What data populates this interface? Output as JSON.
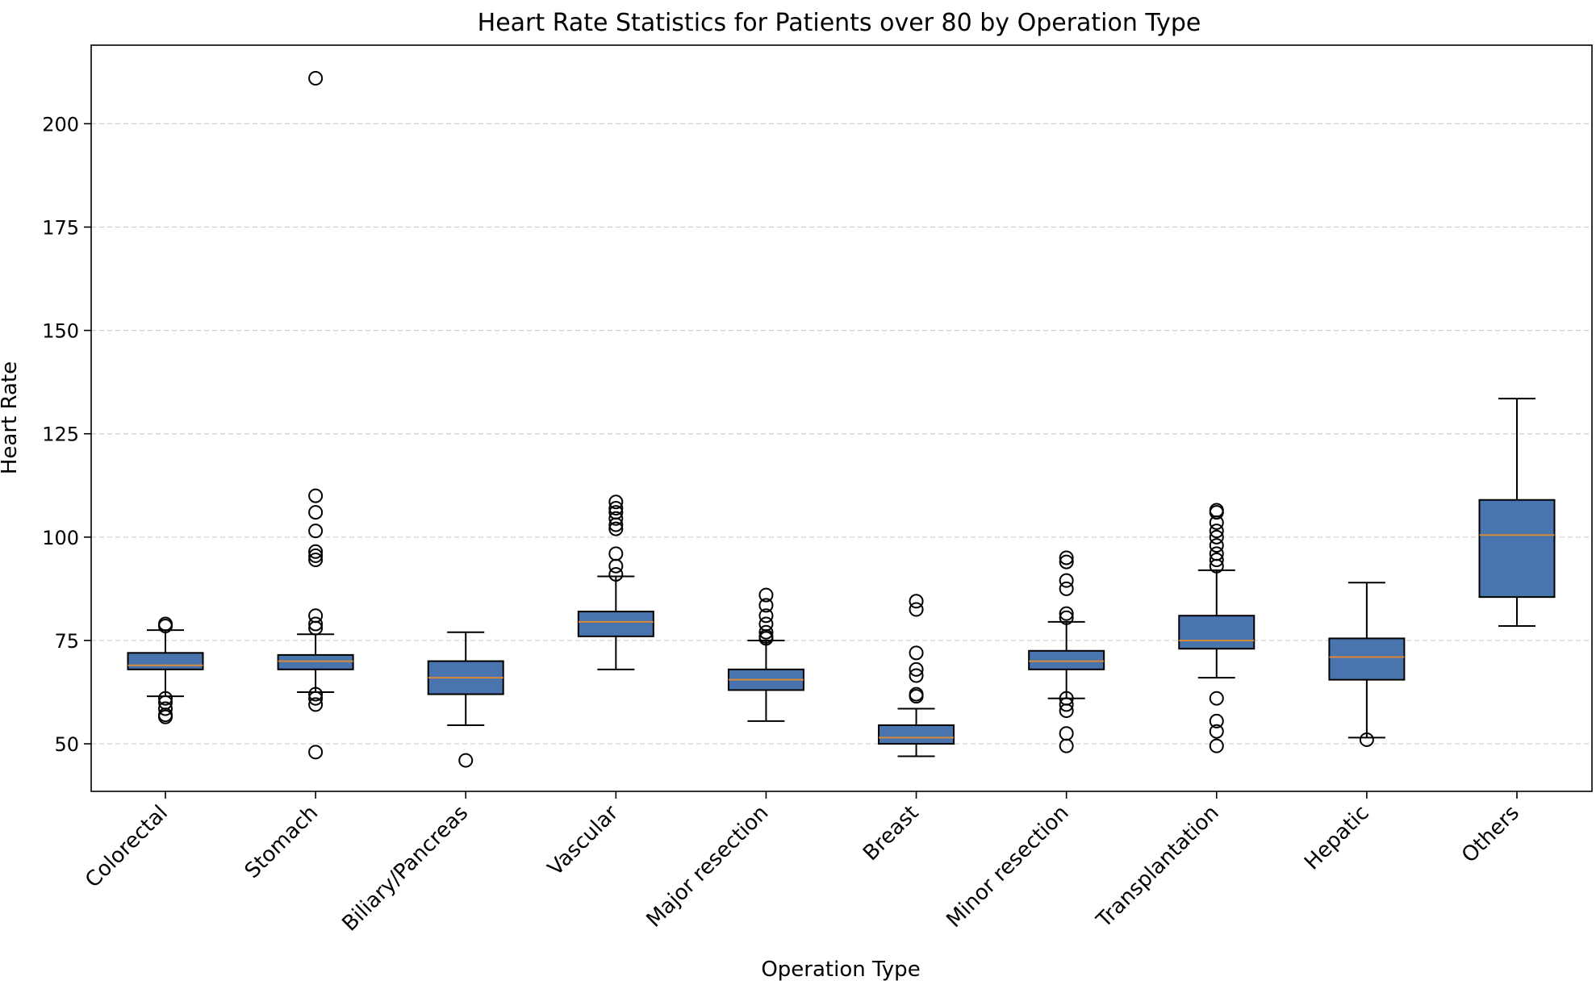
{
  "chart_data": {
    "type": "boxplot",
    "title": "Heart Rate Statistics for Patients over 80 by Operation Type",
    "xlabel": "Operation Type",
    "ylabel": "Heart Rate",
    "ylim": [
      38.5,
      219
    ],
    "yticks": [
      50,
      75,
      100,
      125,
      150,
      175,
      200
    ],
    "grid": "y-dashed",
    "colors": {
      "box_fill": "#4a74ae",
      "median": "#d9893a",
      "edge": "#000000",
      "grid": "#cfcfcf"
    },
    "categories": [
      "Colorectal",
      "Stomach",
      "Biliary/Pancreas",
      "Vascular",
      "Major resection",
      "Breast",
      "Minor resection",
      "Transplantation",
      "Hepatic",
      "Others"
    ],
    "boxes": [
      {
        "category": "Colorectal",
        "whisker_low": 61.5,
        "q1": 68,
        "median": 69,
        "q3": 72,
        "whisker_high": 77.5,
        "outliers": [
          56.5,
          57,
          58.5,
          60,
          61,
          78.5,
          79
        ]
      },
      {
        "category": "Stomach",
        "whisker_low": 62.5,
        "q1": 68,
        "median": 70,
        "q3": 71.5,
        "whisker_high": 76.5,
        "outliers": [
          48,
          59.5,
          61,
          62,
          78,
          79,
          81,
          94.5,
          95.5,
          96.5,
          101.5,
          106,
          110,
          211
        ]
      },
      {
        "category": "Biliary/Pancreas",
        "whisker_low": 54.5,
        "q1": 62,
        "median": 66,
        "q3": 70,
        "whisker_high": 77,
        "outliers": [
          46
        ]
      },
      {
        "category": "Vascular",
        "whisker_low": 68,
        "q1": 76,
        "median": 79.5,
        "q3": 82,
        "whisker_high": 90.5,
        "outliers": [
          91,
          93,
          96,
          102,
          103,
          104.5,
          106,
          107,
          108.5
        ]
      },
      {
        "category": "Major resection",
        "whisker_low": 55.5,
        "q1": 63,
        "median": 65.5,
        "q3": 68,
        "whisker_high": 75,
        "outliers": [
          75.5,
          76,
          77,
          79,
          81,
          83.5,
          86
        ]
      },
      {
        "category": "Breast",
        "whisker_low": 47,
        "q1": 50,
        "median": 51.5,
        "q3": 54.5,
        "whisker_high": 58.5,
        "outliers": [
          61.5,
          62,
          66.5,
          68,
          72,
          82.5,
          84.5
        ]
      },
      {
        "category": "Minor resection",
        "whisker_low": 61,
        "q1": 68,
        "median": 70,
        "q3": 72.5,
        "whisker_high": 79.5,
        "outliers": [
          49.5,
          52.5,
          58,
          59.5,
          61,
          80.5,
          81.5,
          87.5,
          89.5,
          94,
          95
        ]
      },
      {
        "category": "Transplantation",
        "whisker_low": 66,
        "q1": 73,
        "median": 75,
        "q3": 81,
        "whisker_high": 92,
        "outliers": [
          49.5,
          53,
          55.5,
          61,
          93,
          94.5,
          96,
          98,
          100,
          101.5,
          103.5,
          106,
          106.5
        ]
      },
      {
        "category": "Hepatic",
        "whisker_low": 51.5,
        "q1": 65.5,
        "median": 71,
        "q3": 75.5,
        "whisker_high": 89,
        "outliers": [
          51
        ]
      },
      {
        "category": "Others",
        "whisker_low": 78.5,
        "q1": 85.5,
        "median": 100.5,
        "q3": 109,
        "whisker_high": 133.5,
        "outliers": []
      }
    ]
  }
}
